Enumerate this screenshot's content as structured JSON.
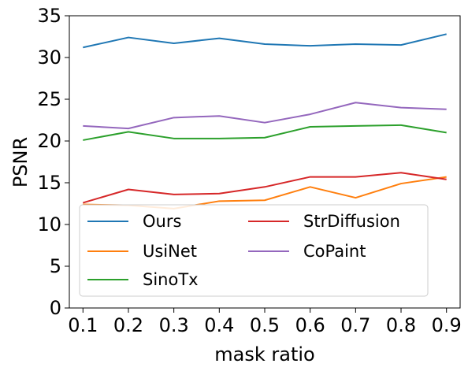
{
  "chart_data": {
    "type": "line",
    "xlabel": "mask ratio",
    "ylabel": "PSNR",
    "x": [
      0.1,
      0.2,
      0.3,
      0.4,
      0.5,
      0.6,
      0.7,
      0.8,
      0.9
    ],
    "x_tick_labels": [
      "0.1",
      "0.2",
      "0.3",
      "0.4",
      "0.5",
      "0.6",
      "0.7",
      "0.8",
      "0.9"
    ],
    "ylim": [
      0,
      35
    ],
    "y_ticks": [
      0,
      5,
      10,
      15,
      20,
      25,
      30,
      35
    ],
    "grid": false,
    "legend_placement": "lower-left",
    "legend_columns": 2,
    "series": [
      {
        "name": "Ours",
        "color": "#1f77b4",
        "values": [
          31.2,
          32.4,
          31.7,
          32.3,
          31.6,
          31.4,
          31.6,
          31.5,
          32.8
        ]
      },
      {
        "name": "UsiNet",
        "color": "#ff7f0e",
        "values": [
          12.4,
          12.3,
          11.9,
          12.8,
          12.9,
          14.5,
          13.2,
          14.9,
          15.7
        ]
      },
      {
        "name": "SinoTx",
        "color": "#2ca02c",
        "values": [
          20.1,
          21.1,
          20.3,
          20.3,
          20.4,
          21.7,
          21.8,
          21.9,
          21.0
        ]
      },
      {
        "name": "StrDiffusion",
        "color": "#d62728",
        "values": [
          12.6,
          14.2,
          13.6,
          13.7,
          14.5,
          15.7,
          15.7,
          16.2,
          15.4
        ]
      },
      {
        "name": "CoPaint",
        "color": "#9467bd",
        "values": [
          21.8,
          21.5,
          22.8,
          23.0,
          22.2,
          23.2,
          24.6,
          24.0,
          23.8
        ]
      }
    ]
  }
}
